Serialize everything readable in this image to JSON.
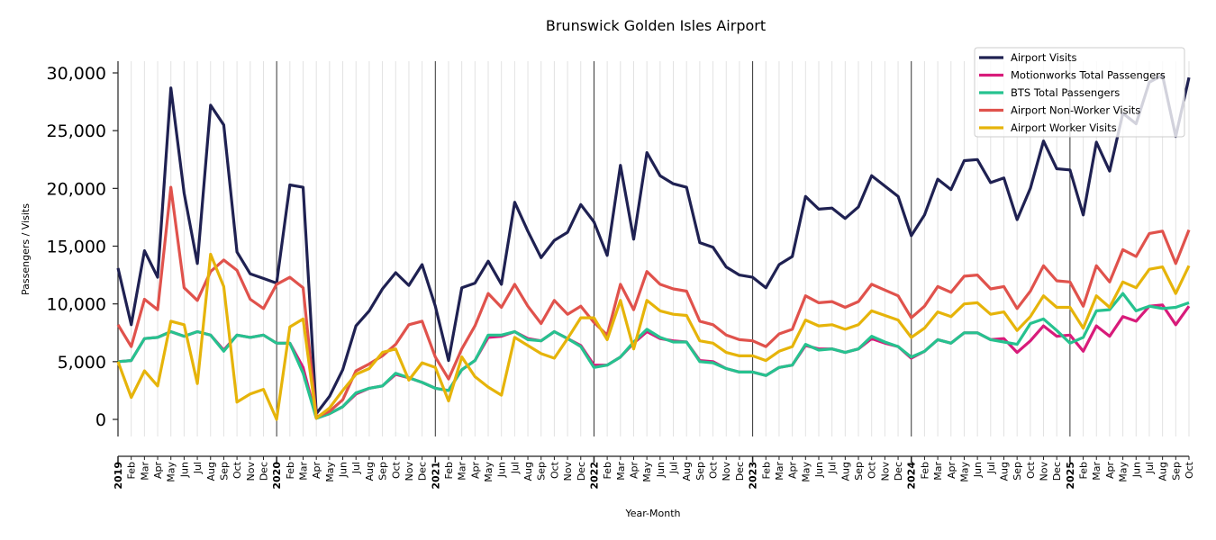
{
  "chart_data": {
    "type": "line",
    "title": "Brunswick Golden Isles Airport",
    "xlabel": "Year-Month",
    "ylabel": "Passengers / Visits",
    "ylim": [
      -1500,
      31000
    ],
    "yticks": [
      "0",
      "5,000",
      "10,000",
      "15,000",
      "20,000",
      "25,000",
      "30,000"
    ],
    "ytick_values": [
      0,
      5000,
      10000,
      15000,
      20000,
      25000,
      30000
    ],
    "x_start": "2019-01",
    "x_end": "2025-10",
    "years": [
      "2019",
      "2020",
      "2021",
      "2022",
      "2023",
      "2024",
      "2025"
    ],
    "month_labels": [
      "Jan",
      "Feb",
      "Mar",
      "Apr",
      "May",
      "Jun",
      "Jul",
      "Aug",
      "Sep",
      "Oct",
      "Nov",
      "Dec"
    ],
    "grid": "vertical monthly lines, dark line at each year start",
    "legend_position": "top-right",
    "series": [
      {
        "name": "Airport Visits",
        "color": "#1f2152",
        "values": [
          13100,
          8200,
          14600,
          12300,
          28700,
          19600,
          13500,
          27200,
          25500,
          14500,
          12600,
          12200,
          11800,
          20300,
          20100,
          500,
          2000,
          4300,
          8100,
          9400,
          11300,
          12700,
          11600,
          13400,
          9800,
          5100,
          11400,
          11800,
          13700,
          11700,
          18800,
          16300,
          14000,
          15500,
          16200,
          18600,
          17100,
          14200,
          22000,
          15600,
          23100,
          21100,
          20400,
          20100,
          15300,
          14900,
          13200,
          12500,
          12300,
          11400,
          13400,
          14100,
          19300,
          18200,
          18300,
          17400,
          18400,
          21100,
          20200,
          19300,
          15900,
          17700,
          20800,
          19900,
          22400,
          22500,
          20500,
          20900,
          17300,
          20000,
          24100,
          21700,
          21600,
          17700,
          24000,
          21500,
          26500,
          25600,
          29200,
          29800,
          24500,
          29600
        ]
      },
      {
        "name": "Motionworks Total Passengers",
        "color": "#d81b7a",
        "values": [
          5000,
          5100,
          7000,
          7100,
          7600,
          7200,
          7600,
          7300,
          6000,
          7300,
          7100,
          7300,
          6600,
          6600,
          4500,
          100,
          500,
          1100,
          2200,
          2700,
          2900,
          3900,
          3600,
          3200,
          2700,
          2500,
          4300,
          5100,
          7100,
          7200,
          7600,
          7000,
          6800,
          7600,
          7000,
          6400,
          4700,
          4700,
          5400,
          6600,
          7600,
          7000,
          6800,
          6700,
          5100,
          5000,
          4400,
          4100,
          4100,
          3800,
          4500,
          4700,
          6400,
          6100,
          6100,
          5800,
          6100,
          7000,
          6600,
          6300,
          5300,
          5900,
          6900,
          6600,
          7500,
          7500,
          6900,
          7000,
          5800,
          6800,
          8100,
          7200,
          7300,
          5900,
          8100,
          7200,
          8900,
          8500,
          9800,
          9900,
          8200,
          9800
        ]
      },
      {
        "name": "BTS Total Passengers",
        "color": "#26c28f",
        "values": [
          5000,
          5100,
          7000,
          7100,
          7600,
          7200,
          7600,
          7300,
          5900,
          7300,
          7100,
          7300,
          6600,
          6600,
          4000,
          100,
          500,
          1100,
          2300,
          2700,
          2900,
          4000,
          3600,
          3200,
          2700,
          2500,
          4300,
          5100,
          7300,
          7300,
          7600,
          6900,
          6800,
          7600,
          7000,
          6300,
          4500,
          4700,
          5400,
          6700,
          7800,
          7100,
          6700,
          6700,
          5000,
          4900,
          4400,
          4100,
          4100,
          3800,
          4500,
          4700,
          6500,
          6000,
          6100,
          5800,
          6100,
          7200,
          6700,
          6300,
          5400,
          5900,
          6900,
          6600,
          7500,
          7500,
          6900,
          6700,
          6500,
          8300,
          8700,
          7700,
          6600,
          7100,
          9400,
          9500,
          10900,
          9400,
          9800,
          9600,
          9700,
          10100
        ]
      },
      {
        "name": "Airport Non-Worker Visits",
        "color": "#e0524c",
        "values": [
          8200,
          6300,
          10400,
          9500,
          20100,
          11400,
          10300,
          12800,
          13800,
          12900,
          10400,
          9600,
          11700,
          12300,
          11400,
          200,
          700,
          1700,
          4200,
          4800,
          5500,
          6500,
          8200,
          8500,
          5400,
          3500,
          6100,
          8100,
          10900,
          9700,
          11700,
          9800,
          8300,
          10300,
          9100,
          9800,
          8400,
          7300,
          11700,
          9500,
          12800,
          11700,
          11300,
          11100,
          8500,
          8200,
          7300,
          6900,
          6800,
          6300,
          7400,
          7800,
          10700,
          10100,
          10200,
          9700,
          10200,
          11700,
          11200,
          10700,
          8800,
          9800,
          11500,
          11000,
          12400,
          12500,
          11300,
          11500,
          9600,
          11100,
          13300,
          12000,
          11900,
          9800,
          13300,
          11900,
          14700,
          14100,
          16100,
          16300,
          13500,
          16400
        ]
      },
      {
        "name": "Airport Worker Visits",
        "color": "#e6b40a",
        "values": [
          5000,
          1900,
          4200,
          2900,
          8500,
          8200,
          3100,
          14300,
          11500,
          1500,
          2200,
          2600,
          0,
          8000,
          8700,
          100,
          1000,
          2500,
          3900,
          4400,
          5800,
          6100,
          3400,
          4900,
          4500,
          1600,
          5400,
          3700,
          2800,
          2100,
          7100,
          6400,
          5700,
          5300,
          7000,
          8800,
          8800,
          6900,
          10300,
          6100,
          10300,
          9400,
          9100,
          9000,
          6800,
          6600,
          5800,
          5500,
          5500,
          5100,
          5900,
          6300,
          8600,
          8100,
          8200,
          7800,
          8200,
          9400,
          9000,
          8600,
          7100,
          7900,
          9300,
          8900,
          10000,
          10100,
          9100,
          9300,
          7700,
          8900,
          10700,
          9700,
          9700,
          7900,
          10700,
          9700,
          11900,
          11400,
          13000,
          13200,
          10900,
          13300
        ]
      }
    ]
  }
}
